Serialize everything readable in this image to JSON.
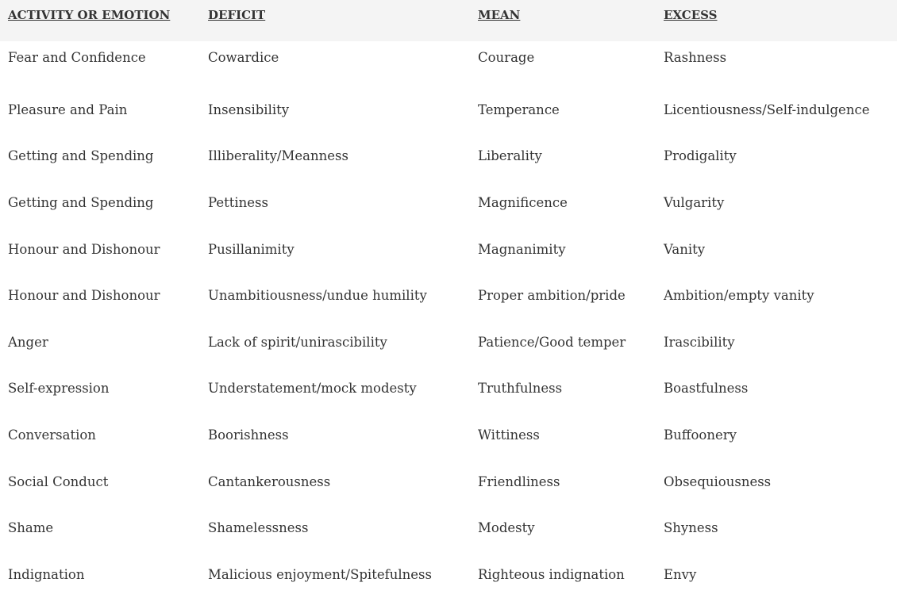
{
  "table": {
    "headers": [
      "ACTIVITY OR EMOTION",
      "DEFICIT",
      "MEAN",
      "EXCESS"
    ],
    "rows": [
      [
        "Fear and Confidence",
        "Cowardice",
        "Courage",
        "Rashness"
      ],
      [
        "Pleasure and Pain",
        "Insensibility",
        "Temperance",
        "Licentiousness/Self-indulgence"
      ],
      [
        "Getting and Spending",
        "Illiberality/Meanness",
        "Liberality",
        "Prodigality"
      ],
      [
        "Getting and Spending",
        "Pettiness",
        "Magnificence",
        "Vulgarity"
      ],
      [
        "Honour and Dishonour",
        "Pusillanimity",
        "Magnanimity",
        "Vanity"
      ],
      [
        "Honour and Dishonour",
        "Unambitiousness/undue humility",
        "Proper ambition/pride",
        "Ambition/empty vanity"
      ],
      [
        "Anger",
        "Lack of spirit/unirascibility",
        "Patience/Good temper",
        "Irascibility"
      ],
      [
        "Self-expression",
        "Understatement/mock modesty",
        "Truthfulness",
        "Boastfulness"
      ],
      [
        "Conversation",
        "Boorishness",
        "Wittiness",
        "Buffoonery"
      ],
      [
        "Social Conduct",
        "Cantankerousness",
        "Friendliness",
        "Obsequiousness"
      ],
      [
        "Shame",
        "Shamelessness",
        "Modesty",
        "Shyness"
      ],
      [
        "Indignation",
        "Malicious enjoyment/Spitefulness",
        "Righteous indignation",
        "Envy"
      ]
    ]
  }
}
